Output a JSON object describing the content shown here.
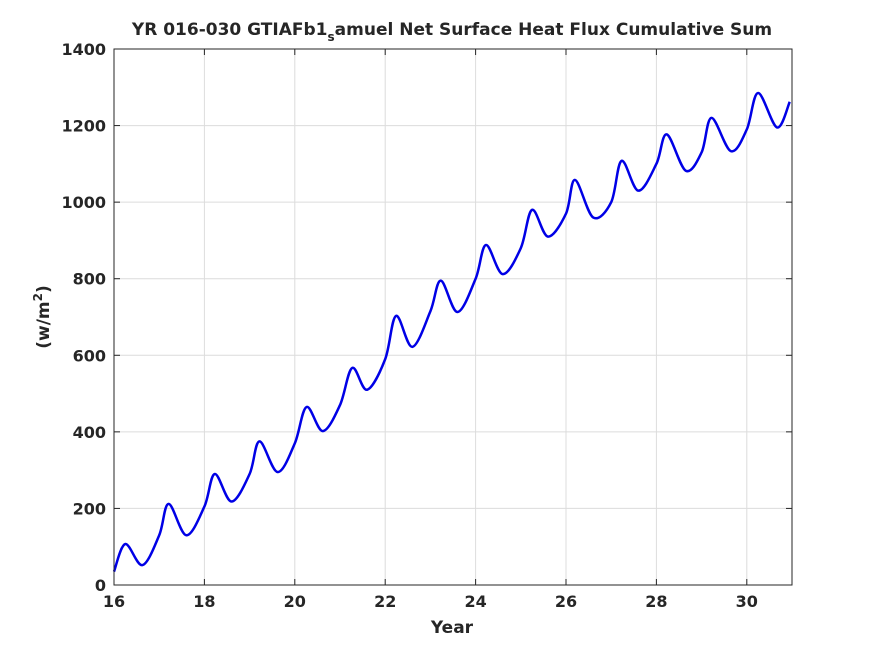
{
  "chart_data": {
    "type": "line",
    "title_main": "YR 016-030 GTIAFb1",
    "title_sub": "s",
    "title_rest": "amuel Net Surface Heat Flux  Cumulative Sum",
    "xlabel": "Year",
    "ylabel_main": "(w/m",
    "ylabel_sup": "2",
    "ylabel_end": ")",
    "xlim": [
      16,
      31
    ],
    "ylim": [
      0,
      1400
    ],
    "xticks": [
      16,
      18,
      20,
      22,
      24,
      26,
      28,
      30
    ],
    "yticks": [
      0,
      200,
      400,
      600,
      800,
      1000,
      1200,
      1400
    ],
    "grid": true,
    "line_color": "#0000e6",
    "series": [
      {
        "x": [
          16.0,
          16.25,
          16.63,
          17.0,
          17.21,
          17.6,
          18.0,
          18.23,
          18.6,
          19.0,
          19.22,
          19.62,
          20.0,
          20.26,
          20.62,
          21.0,
          21.27,
          21.6,
          22.0,
          22.24,
          22.6,
          23.0,
          23.23,
          23.6,
          24.0,
          24.23,
          24.6,
          25.0,
          25.25,
          25.6,
          26.0,
          26.2,
          26.6,
          27.0,
          27.23,
          27.6,
          28.0,
          28.23,
          28.65,
          29.0,
          29.22,
          29.65,
          30.0,
          30.25,
          30.67,
          30.95
        ],
        "y": [
          35,
          107,
          52,
          130,
          212,
          130,
          205,
          290,
          218,
          290,
          375,
          295,
          370,
          465,
          402,
          470,
          567,
          510,
          590,
          703,
          622,
          715,
          795,
          713,
          800,
          888,
          812,
          880,
          980,
          910,
          970,
          1058,
          960,
          1000,
          1108,
          1030,
          1100,
          1177,
          1082,
          1130,
          1220,
          1133,
          1190,
          1285,
          1195,
          1262
        ]
      }
    ]
  }
}
